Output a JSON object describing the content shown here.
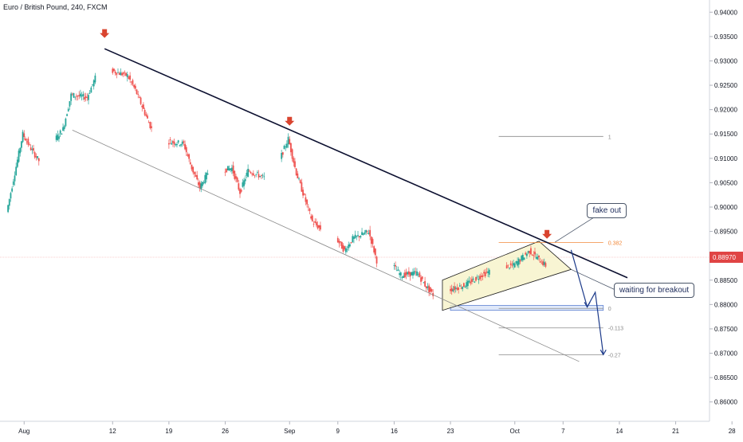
{
  "header": {
    "title": "Euro / British Pound, 240, FXCM"
  },
  "chart_data": {
    "type": "candlestick",
    "title": "Euro / British Pound, 240, FXCM",
    "ylim": [
      0.8575,
      0.9425
    ],
    "y_ticks": [
      "0.94000",
      "0.93500",
      "0.93000",
      "0.92500",
      "0.92000",
      "0.91500",
      "0.91000",
      "0.90500",
      "0.90000",
      "0.89500",
      "0.89000",
      "0.88500",
      "0.88000",
      "0.87500",
      "0.87000",
      "0.86500",
      "0.86000"
    ],
    "x_ticks": [
      "Aug",
      "12",
      "19",
      "26",
      "Sep",
      "9",
      "16",
      "23",
      "Oct",
      "7",
      "14",
      "21",
      "28"
    ],
    "current_price": "0.88970",
    "price_path": [
      [
        "2019-07-30",
        0.899
      ],
      [
        "2019-08-01",
        0.915
      ],
      [
        "2019-08-02",
        0.912
      ],
      [
        "2019-08-03",
        0.9095
      ],
      [
        "2019-08-06",
        0.916
      ],
      [
        "2019-08-07",
        0.923
      ],
      [
        "2019-08-09",
        0.9225
      ],
      [
        "2019-08-10",
        0.9265
      ],
      [
        "2019-08-11",
        0.9315
      ],
      [
        "2019-08-12",
        0.928
      ],
      [
        "2019-08-14",
        0.927
      ],
      [
        "2019-08-15",
        0.924
      ],
      [
        "2019-08-17",
        0.916
      ],
      [
        "2019-08-18",
        0.91
      ],
      [
        "2019-08-19",
        0.9135
      ],
      [
        "2019-08-21",
        0.913
      ],
      [
        "2019-08-22",
        0.908
      ],
      [
        "2019-08-23",
        0.904
      ],
      [
        "2019-08-24",
        0.907
      ],
      [
        "2019-08-27",
        0.908
      ],
      [
        "2019-08-28",
        0.903
      ],
      [
        "2019-08-29",
        0.9075
      ],
      [
        "2019-08-31",
        0.906
      ],
      [
        "2019-09-01",
        0.908
      ],
      [
        "2019-09-02",
        0.91
      ],
      [
        "2019-09-03",
        0.914
      ],
      [
        "2019-09-04",
        0.907
      ],
      [
        "2019-09-05",
        0.902
      ],
      [
        "2019-09-06",
        0.897
      ],
      [
        "2019-09-07",
        0.8955
      ],
      [
        "2019-09-09",
        0.8935
      ],
      [
        "2019-09-10",
        0.891
      ],
      [
        "2019-09-11",
        0.8935
      ],
      [
        "2019-09-13",
        0.895
      ],
      [
        "2019-09-14",
        0.889
      ],
      [
        "2019-09-16",
        0.888
      ],
      [
        "2019-09-17",
        0.886
      ],
      [
        "2019-09-19",
        0.8865
      ],
      [
        "2019-09-20",
        0.884
      ],
      [
        "2019-09-21",
        0.882
      ],
      [
        "2019-09-22",
        0.8805
      ],
      [
        "2019-09-23",
        0.883
      ],
      [
        "2019-09-25",
        0.884
      ],
      [
        "2019-09-27",
        0.886
      ],
      [
        "2019-09-29",
        0.8875
      ],
      [
        "2019-10-01",
        0.888
      ],
      [
        "2019-10-02",
        0.8895
      ],
      [
        "2019-10-03",
        0.891
      ],
      [
        "2019-10-04",
        0.8895
      ],
      [
        "2019-10-05",
        0.888
      ],
      [
        "2019-10-06",
        0.8905
      ],
      [
        "2019-10-07",
        0.8897
      ]
    ],
    "trendlines": [
      {
        "name": "upper-resistance",
        "from": [
          "2019-08-11",
          0.9325
        ],
        "to": [
          "2019-10-15",
          0.8855
        ]
      },
      {
        "name": "lower-channel",
        "from": [
          "2019-08-07",
          0.9158
        ],
        "to": [
          "2019-10-09",
          0.8683
        ]
      }
    ],
    "wedge": {
      "points": [
        [
          "2019-09-22",
          0.885
        ],
        [
          "2019-10-04",
          0.893
        ],
        [
          "2019-10-08",
          0.8872
        ],
        [
          "2019-09-22",
          0.8788
        ]
      ]
    },
    "horizontal_line": {
      "price": 0.8927,
      "from": "2019-09-29",
      "to": "2019-10-12"
    },
    "fibonacci": {
      "from": "2019-09-29",
      "to": "2019-10-12",
      "levels": [
        {
          "label": "1",
          "price": 0.9145
        },
        {
          "label": "0.382",
          "price": 0.8927
        },
        {
          "label": "0",
          "price": 0.8792
        },
        {
          "label": "-0.113",
          "price": 0.8752
        },
        {
          "label": "-0.27",
          "price": 0.8697
        }
      ]
    },
    "target_box": {
      "from": "2019-09-23",
      "to": "2019-10-12",
      "top": 0.8798,
      "bottom": 0.8788
    },
    "arrows_down": [
      [
        "2019-08-11",
        0.9352
      ],
      [
        "2019-09-03",
        0.9172
      ],
      [
        "2019-10-05",
        0.894
      ]
    ],
    "projection": [
      [
        "2019-10-08",
        0.8912
      ],
      [
        "2019-10-10",
        0.8795
      ],
      [
        "2019-10-11",
        0.8825
      ],
      [
        "2019-10-12",
        0.8697
      ]
    ],
    "annotations": [
      {
        "text": "fake out",
        "price": 0.8993,
        "date": "2019-10-09"
      },
      {
        "text": "waiting for breakout",
        "price": 0.883,
        "date": "2019-10-13"
      }
    ],
    "colors": {
      "up": "#26a69a",
      "down": "#ef5350",
      "trendline": "#0c1030",
      "marker": "#d9442f",
      "projection": "#1c3a8a",
      "wedge_fill": "#f6f2c4",
      "price_label": "#e04444",
      "fib_orange": "#f28a3c"
    }
  }
}
